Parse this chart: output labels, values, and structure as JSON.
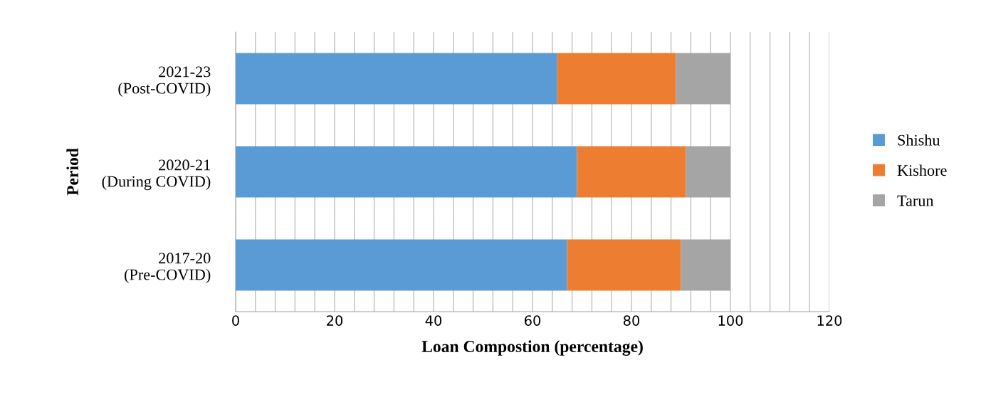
{
  "chart_data": {
    "type": "bar",
    "orientation": "horizontal",
    "stacked": true,
    "xlabel": "Loan Compostion (percentage)",
    "ylabel": "Period",
    "categories": [
      "2021-23\n(Post-COVID)",
      "2020-21\n(During COVID)",
      "2017-20\n(Pre-COVID)"
    ],
    "series": [
      {
        "name": "Shishu",
        "color": "#5b9bd5",
        "values": [
          65,
          69,
          67
        ]
      },
      {
        "name": "Kishore",
        "color": "#ed7d31",
        "values": [
          24,
          22,
          23
        ]
      },
      {
        "name": "Tarun",
        "color": "#a5a5a5",
        "values": [
          11,
          9,
          10
        ]
      }
    ],
    "xlim": [
      0,
      120
    ],
    "xticks": [
      0,
      {
        "value": 4,
        "label": null
      },
      {
        "value": 8,
        "label": null
      },
      {
        "value": 12,
        "label": null
      },
      {
        "value": 16,
        "label": null
      },
      20,
      {
        "value": 24,
        "label": null
      },
      {
        "value": 28,
        "label": null
      },
      {
        "value": 32,
        "label": null
      },
      {
        "value": 36,
        "label": null
      },
      40,
      {
        "value": 44,
        "label": null
      },
      {
        "value": 48,
        "label": null
      },
      {
        "value": 52,
        "label": null
      },
      {
        "value": 56,
        "label": null
      },
      60,
      {
        "value": 64,
        "label": null
      },
      {
        "value": 68,
        "label": null
      },
      {
        "value": 72,
        "label": null
      },
      {
        "value": 76,
        "label": null
      },
      80,
      {
        "value": 84,
        "label": null
      },
      {
        "value": 88,
        "label": null
      },
      {
        "value": 92,
        "label": null
      },
      {
        "value": 96,
        "label": null
      },
      100,
      {
        "value": 104,
        "label": null
      },
      {
        "value": 108,
        "label": null
      },
      {
        "value": 112,
        "label": null
      },
      {
        "value": 116,
        "label": null
      },
      120
    ],
    "grid": "x",
    "legend": "right"
  }
}
